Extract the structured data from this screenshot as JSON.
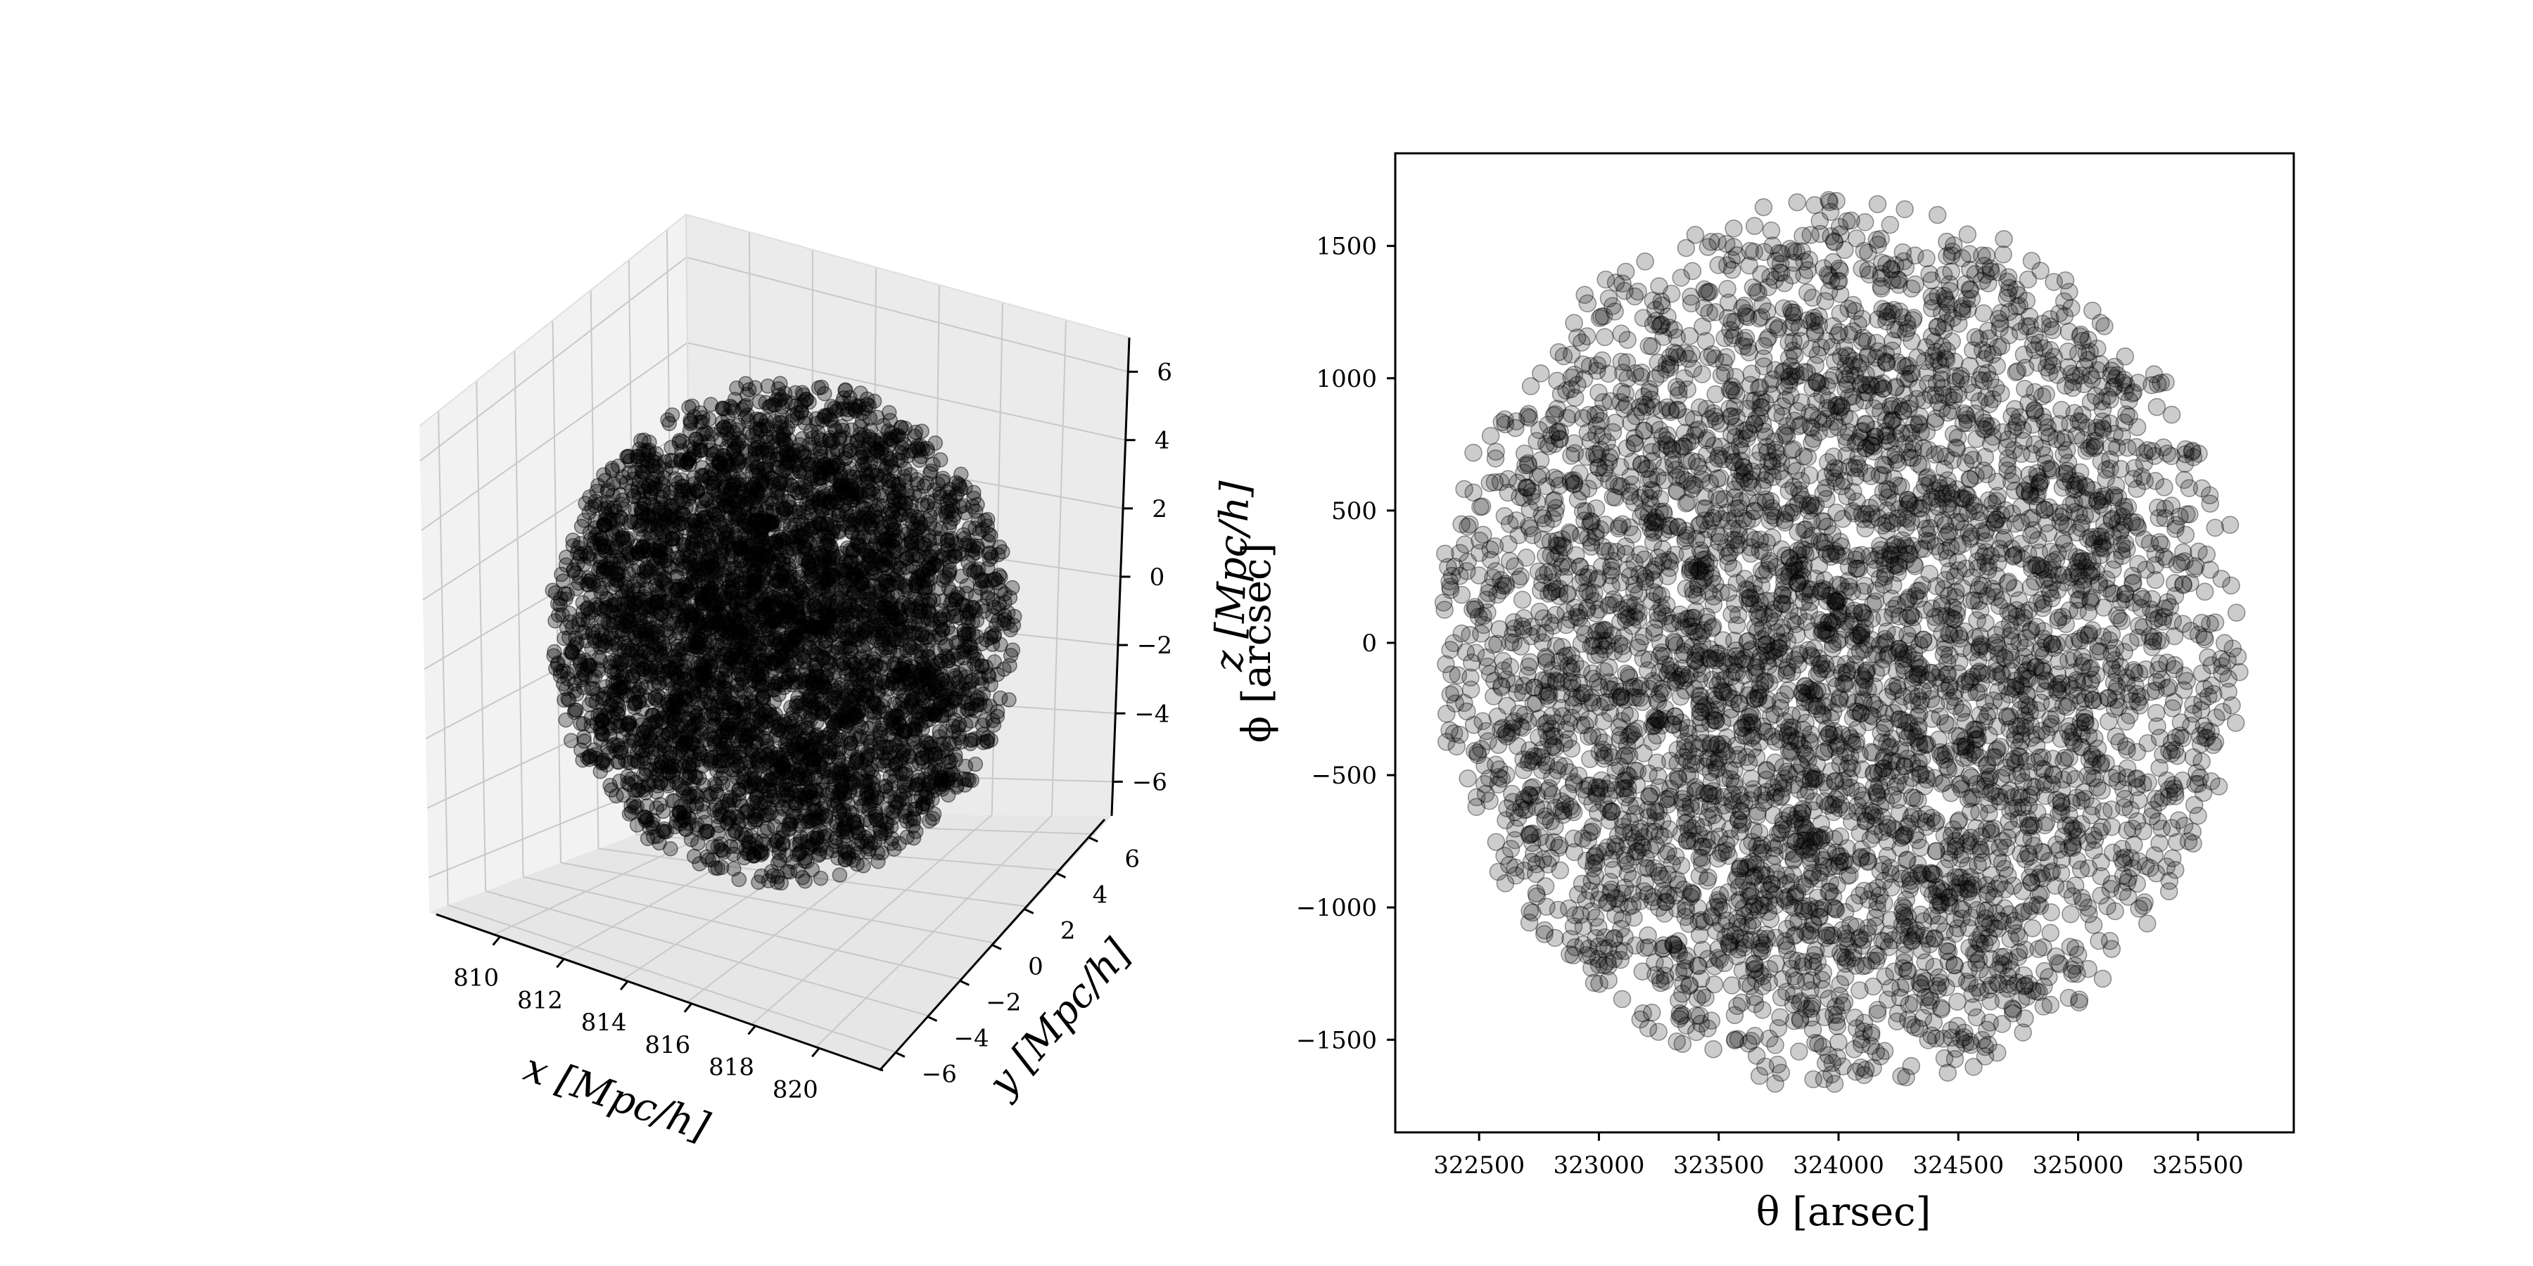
{
  "chart_data": [
    {
      "type": "scatter",
      "projection": "3d",
      "title": "",
      "xlabel": "x [Mpc/h]",
      "ylabel": "y [Mpc/h]",
      "zlabel": "z [Mpc/h]",
      "xlim": [
        808,
        822
      ],
      "ylim": [
        -7,
        7
      ],
      "zlim": [
        -7,
        7
      ],
      "x_ticks": [
        "810",
        "812",
        "814",
        "816",
        "818",
        "820"
      ],
      "y_ticks": [
        "−6",
        "−4",
        "−2",
        "0",
        "2",
        "4",
        "6"
      ],
      "z_ticks": [
        "−6",
        "−4",
        "−2",
        "0",
        "2",
        "4",
        "6"
      ],
      "grid": true,
      "point_color": "#000000",
      "point_alpha": 0.3,
      "distribution": {
        "shape": "ball",
        "center": [
          815,
          0,
          0
        ],
        "radius": 6.5,
        "n_points": 5000
      }
    },
    {
      "type": "scatter",
      "title": "",
      "xlabel": "θ [arsec]",
      "ylabel": "ϕ [arcsec]",
      "xlim": [
        322150,
        325900
      ],
      "ylim": [
        -1850,
        1850
      ],
      "x_ticks": [
        "322500",
        "323000",
        "323500",
        "324000",
        "324500",
        "325000",
        "325500"
      ],
      "y_ticks": [
        "1500",
        "1000",
        "500",
        "0",
        "−500",
        "−1000",
        "−1500"
      ],
      "grid": false,
      "point_color": "#000000",
      "point_alpha": 0.2,
      "distribution": {
        "shape": "disk",
        "center": [
          324000,
          0
        ],
        "radius_x": 1700,
        "radius_y": 1700,
        "n_points": 5000
      }
    }
  ]
}
